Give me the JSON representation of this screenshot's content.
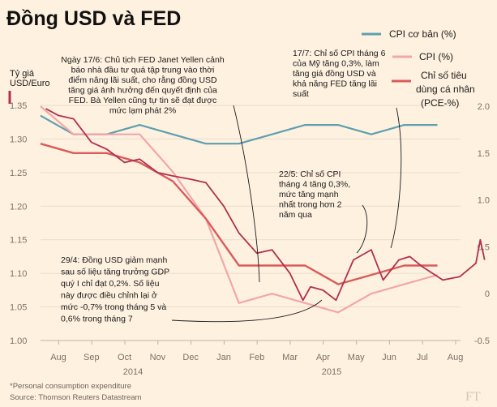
{
  "title": "Đồng USD và FED",
  "left_axis_label": [
    "Tỷ giá",
    "USD/Euro"
  ],
  "footnote": "*Personal consumption expenditure",
  "source": "Source: Thomson Reuters Datastream",
  "watermark": "FT",
  "colors": {
    "usd_eur": "#b0304e",
    "core_cpi": "#5d9fb0",
    "cpi": "#f2a6a8",
    "pce": "#d95b5b",
    "grid": "#e6dccd",
    "background": "#fff1e0"
  },
  "annotations": {
    "yellen": [
      "Ngày 17/6: Chủ tịch FED Janet Yellen cảnh",
      "báo nhà đầu tư quá tập trung vào thời",
      "điểm nâng lãi suất, cho rằng đồng USD",
      "tăng giá ảnh hưởng đến quyết định của",
      "FED. Bà Yellen cũng tự tin sẽ đạt được",
      "mức lạm phát 2%"
    ],
    "cpi_june": [
      "17/7: Chỉ số CPI tháng 6",
      "của Mỹ tăng 0,3%, làm",
      "tăng giá đồng USD và",
      "khả năng FED tăng lãi",
      "suất"
    ],
    "cpi_april": [
      "22/5: Chỉ số CPI",
      "tháng 4 tăng 0,3%,",
      "mức tăng mạnh",
      "nhất trong hơn 2",
      "năm qua"
    ],
    "gdp": [
      "29/4: Đồng USD giảm mạnh",
      "sau số liệu tăng trưởng GDP",
      "quý I chỉ đạt 0,2%. Số liệu",
      "này được điều chỉnh lại ở",
      "mức -0,7% trong tháng 5 và",
      "0,6% trong tháng 7"
    ]
  },
  "chart_data": {
    "type": "line",
    "title": "Đồng USD và FED",
    "x_tick_labels": [
      "Aug",
      "Sep",
      "Oct",
      "Nov",
      "Dec",
      "Jan",
      "Feb",
      "Mar",
      "Apr",
      "May",
      "Jun",
      "Jul",
      "Aug"
    ],
    "year_labels": [
      "2014",
      "2015"
    ],
    "left_axis": {
      "label": "Tỷ giá USD/Euro",
      "ticks": [
        "1.35",
        "1.30",
        "1.25",
        "1.20",
        "1.15",
        "1.10",
        "1.05",
        "1.00"
      ],
      "range": [
        1.0,
        1.35
      ]
    },
    "right_axis": {
      "ticks": [
        "2.0",
        "1.5",
        "1.0",
        "0.5",
        "0",
        "-0.5"
      ],
      "range": [
        -0.5,
        2.0
      ]
    },
    "grid": true,
    "legend_position": "top-right",
    "series": [
      {
        "name": "CPI cơ bản (%)",
        "axis": "right",
        "color_key": "core_cpi",
        "x": [
          "2014-07-15",
          "2014-08-15",
          "2014-09-15",
          "2014-10-15",
          "2014-11-15",
          "2014-12-15",
          "2015-01-15",
          "2015-02-15",
          "2015-03-15",
          "2015-04-15",
          "2015-05-15",
          "2015-06-15",
          "2015-07-15"
        ],
        "values": [
          1.9,
          1.7,
          1.7,
          1.8,
          1.7,
          1.6,
          1.6,
          1.7,
          1.8,
          1.8,
          1.7,
          1.8,
          1.8
        ]
      },
      {
        "name": "CPI (%)",
        "axis": "right",
        "color_key": "cpi",
        "x": [
          "2014-07-15",
          "2014-08-15",
          "2014-09-15",
          "2014-10-15",
          "2014-11-15",
          "2014-12-15",
          "2015-01-15",
          "2015-02-15",
          "2015-03-15",
          "2015-04-15",
          "2015-05-15",
          "2015-06-15",
          "2015-07-15"
        ],
        "values": [
          2.0,
          1.7,
          1.7,
          1.7,
          1.3,
          0.8,
          -0.1,
          0.0,
          -0.1,
          -0.2,
          0.0,
          0.1,
          0.2
        ]
      },
      {
        "name": "Chỉ số tiêu dùng cá nhân (PCE-%)",
        "axis": "right",
        "color_key": "pce",
        "x": [
          "2014-07-15",
          "2014-08-15",
          "2014-09-15",
          "2014-10-15",
          "2014-11-15",
          "2014-12-15",
          "2015-01-15",
          "2015-02-15",
          "2015-03-15",
          "2015-04-15",
          "2015-05-15",
          "2015-06-15",
          "2015-07-15"
        ],
        "values": [
          1.6,
          1.5,
          1.5,
          1.4,
          1.2,
          0.8,
          0.3,
          0.3,
          0.3,
          0.1,
          0.2,
          0.3,
          0.3
        ]
      },
      {
        "name": "Tỷ giá USD/Euro",
        "axis": "left",
        "color_key": "usd_eur",
        "x": [
          "2014-07-20",
          "2014-08-01",
          "2014-08-15",
          "2014-09-01",
          "2014-09-15",
          "2014-10-01",
          "2014-10-15",
          "2014-11-01",
          "2014-11-15",
          "2014-12-01",
          "2014-12-15",
          "2015-01-01",
          "2015-01-15",
          "2015-02-01",
          "2015-02-15",
          "2015-03-01",
          "2015-03-13",
          "2015-03-20",
          "2015-04-01",
          "2015-04-13",
          "2015-04-29",
          "2015-05-15",
          "2015-05-26",
          "2015-06-10",
          "2015-06-20",
          "2015-07-01",
          "2015-07-20",
          "2015-08-05",
          "2015-08-20",
          "2015-08-24",
          "2015-08-28"
        ],
        "values": [
          1.345,
          1.335,
          1.33,
          1.295,
          1.285,
          1.265,
          1.27,
          1.25,
          1.245,
          1.24,
          1.235,
          1.2,
          1.16,
          1.13,
          1.135,
          1.1,
          1.06,
          1.08,
          1.075,
          1.06,
          1.12,
          1.135,
          1.09,
          1.12,
          1.125,
          1.11,
          1.09,
          1.095,
          1.115,
          1.15,
          1.12
        ]
      }
    ]
  }
}
